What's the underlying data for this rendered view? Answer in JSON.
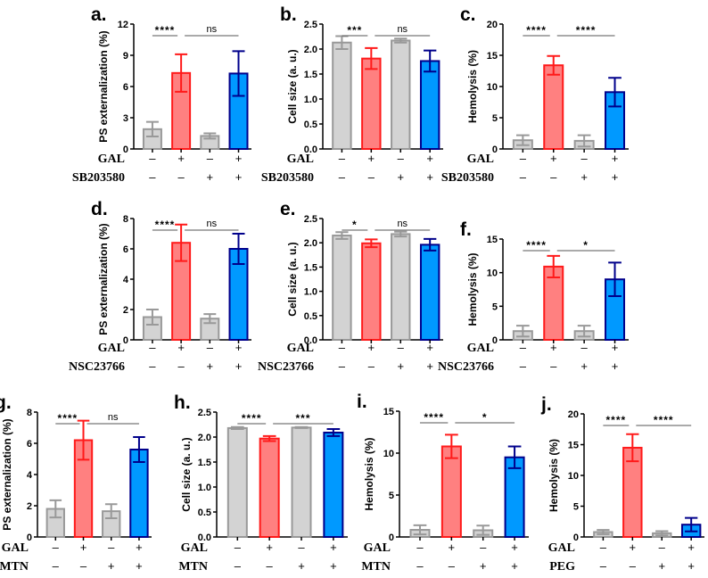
{
  "chart_data": [
    {
      "type": "bar",
      "letter": "a.",
      "ylabel": "PS externalization (%)",
      "ylim": [
        0,
        12
      ],
      "ticks": [
        "0",
        "3",
        "6",
        "9",
        "12"
      ],
      "values": [
        1.9,
        7.3,
        1.25,
        7.25
      ],
      "errors": [
        0.7,
        1.8,
        0.25,
        2.15
      ],
      "significance": [
        {
          "from": 0,
          "to": 1,
          "label": "****"
        },
        {
          "from": 1,
          "to": 3,
          "label": "ns"
        }
      ],
      "factors": [
        {
          "name": "GAL",
          "signs": [
            "–",
            "+",
            "–",
            "+"
          ]
        },
        {
          "name": "SB203580",
          "signs": [
            "–",
            "–",
            "+",
            "+"
          ]
        }
      ]
    },
    {
      "type": "bar",
      "letter": "b.",
      "ylabel": "Cell size (a. u.)",
      "ylim": [
        0,
        2.5
      ],
      "ticks": [
        "0.0",
        "0.5",
        "1.0",
        "1.5",
        "2.0",
        "2.5"
      ],
      "values": [
        2.13,
        1.81,
        2.17,
        1.76
      ],
      "errors": [
        0.13,
        0.21,
        0.04,
        0.21
      ],
      "significance": [
        {
          "from": 0,
          "to": 1,
          "label": "***"
        },
        {
          "from": 1,
          "to": 3,
          "label": "ns"
        }
      ],
      "factors": [
        {
          "name": "GAL",
          "signs": [
            "–",
            "+",
            "–",
            "+"
          ]
        },
        {
          "name": "SB203580",
          "signs": [
            "–",
            "–",
            "+",
            "+"
          ]
        }
      ]
    },
    {
      "type": "bar",
      "letter": "c.",
      "ylabel": "Hemolysis (%)",
      "ylim": [
        0,
        20
      ],
      "ticks": [
        "0",
        "5",
        "10",
        "15",
        "20"
      ],
      "values": [
        1.4,
        13.4,
        1.3,
        9.1
      ],
      "errors": [
        0.8,
        1.5,
        0.9,
        2.3
      ],
      "significance": [
        {
          "from": 0,
          "to": 1,
          "label": "****"
        },
        {
          "from": 1,
          "to": 3,
          "label": "****"
        }
      ],
      "factors": [
        {
          "name": "GAL",
          "signs": [
            "–",
            "+",
            "–",
            "+"
          ]
        },
        {
          "name": "SB203580",
          "signs": [
            "–",
            "–",
            "+",
            "+"
          ]
        }
      ]
    },
    {
      "type": "bar",
      "letter": "d.",
      "ylabel": "PS externalization (%)",
      "ylim": [
        0,
        8
      ],
      "ticks": [
        "0",
        "2",
        "4",
        "6",
        "8"
      ],
      "values": [
        1.5,
        6.4,
        1.4,
        6.0
      ],
      "errors": [
        0.5,
        1.2,
        0.3,
        1.0
      ],
      "significance": [
        {
          "from": 0,
          "to": 1,
          "label": "****"
        },
        {
          "from": 1,
          "to": 3,
          "label": "ns"
        }
      ],
      "factors": [
        {
          "name": "GAL",
          "signs": [
            "–",
            "+",
            "–",
            "+"
          ]
        },
        {
          "name": "NSC23766",
          "signs": [
            "–",
            "–",
            "+",
            "+"
          ]
        }
      ]
    },
    {
      "type": "bar",
      "letter": "e.",
      "ylabel": "Cell size (a. u.)",
      "ylim": [
        0,
        2.5
      ],
      "ticks": [
        "0.0",
        "0.5",
        "1.0",
        "1.5",
        "2.0",
        "2.5"
      ],
      "values": [
        2.15,
        1.99,
        2.18,
        1.96
      ],
      "errors": [
        0.07,
        0.08,
        0.05,
        0.12
      ],
      "significance": [
        {
          "from": 0,
          "to": 1,
          "label": "*"
        },
        {
          "from": 1,
          "to": 3,
          "label": "ns"
        }
      ],
      "factors": [
        {
          "name": "GAL",
          "signs": [
            "–",
            "+",
            "–",
            "+"
          ]
        },
        {
          "name": "NSC23766",
          "signs": [
            "–",
            "–",
            "+",
            "+"
          ]
        }
      ]
    },
    {
      "type": "bar",
      "letter": "f.",
      "ylabel": "Hemolysis (%)",
      "ylim": [
        0,
        15
      ],
      "ticks": [
        "0",
        "5",
        "10",
        "15"
      ],
      "values": [
        1.3,
        10.9,
        1.3,
        9.0
      ],
      "errors": [
        0.8,
        1.6,
        0.8,
        2.5
      ],
      "significance": [
        {
          "from": 0,
          "to": 1,
          "label": "****"
        },
        {
          "from": 1,
          "to": 3,
          "label": "*"
        }
      ],
      "factors": [
        {
          "name": "GAL",
          "signs": [
            "–",
            "+",
            "–",
            "+"
          ]
        },
        {
          "name": "NSC23766",
          "signs": [
            "–",
            "–",
            "+",
            "+"
          ]
        }
      ]
    },
    {
      "type": "bar",
      "letter": "g.",
      "ylabel": "PS externalization (%)",
      "ylim": [
        0,
        8
      ],
      "ticks": [
        "0",
        "2",
        "4",
        "6",
        "8"
      ],
      "values": [
        1.8,
        6.2,
        1.65,
        5.6
      ],
      "errors": [
        0.55,
        1.25,
        0.45,
        0.8
      ],
      "significance": [
        {
          "from": 0,
          "to": 1,
          "label": "****"
        },
        {
          "from": 1,
          "to": 3,
          "label": "ns"
        }
      ],
      "factors": [
        {
          "name": "GAL",
          "signs": [
            "–",
            "+",
            "–",
            "+"
          ]
        },
        {
          "name": "MTN",
          "signs": [
            "–",
            "–",
            "+",
            "+"
          ]
        }
      ]
    },
    {
      "type": "bar",
      "letter": "h.",
      "ylabel": "Cell size (a. u.)",
      "ylim": [
        0,
        2.5
      ],
      "ticks": [
        "0.0",
        "0.5",
        "1.0",
        "1.5",
        "2.0",
        "2.5"
      ],
      "values": [
        2.18,
        1.97,
        2.19,
        2.09
      ],
      "errors": [
        0.02,
        0.05,
        0.01,
        0.07
      ],
      "significance": [
        {
          "from": 0,
          "to": 1,
          "label": "****"
        },
        {
          "from": 1,
          "to": 3,
          "label": "***"
        }
      ],
      "factors": [
        {
          "name": "GAL",
          "signs": [
            "–",
            "+",
            "–",
            "+"
          ]
        },
        {
          "name": "MTN",
          "signs": [
            "–",
            "–",
            "+",
            "+"
          ]
        }
      ]
    },
    {
      "type": "bar",
      "letter": "i.",
      "ylabel": "Hemolysis (%)",
      "ylim": [
        0,
        15
      ],
      "ticks": [
        "0",
        "5",
        "10",
        "15"
      ],
      "values": [
        0.85,
        10.8,
        0.8,
        9.5
      ],
      "errors": [
        0.55,
        1.4,
        0.55,
        1.3
      ],
      "significance": [
        {
          "from": 0,
          "to": 1,
          "label": "****"
        },
        {
          "from": 1,
          "to": 3,
          "label": "*"
        }
      ],
      "factors": [
        {
          "name": "GAL",
          "signs": [
            "–",
            "+",
            "–",
            "+"
          ]
        },
        {
          "name": "MTN",
          "signs": [
            "–",
            "–",
            "+",
            "+"
          ]
        }
      ]
    },
    {
      "type": "bar",
      "letter": "j.",
      "ylabel": "Hemolysis (%)",
      "ylim": [
        0,
        20
      ],
      "ticks": [
        "0",
        "5",
        "10",
        "15",
        "20"
      ],
      "values": [
        0.8,
        14.5,
        0.6,
        2.0
      ],
      "errors": [
        0.35,
        2.2,
        0.35,
        1.1
      ],
      "significance": [
        {
          "from": 0,
          "to": 1,
          "label": "****"
        },
        {
          "from": 1,
          "to": 3,
          "label": "****"
        }
      ],
      "factors": [
        {
          "name": "GAL",
          "signs": [
            "–",
            "+",
            "–",
            "+"
          ]
        },
        {
          "name": "PEG",
          "signs": [
            "–",
            "–",
            "+",
            "+"
          ]
        }
      ]
    }
  ],
  "colors": {
    "gray_fill": "#d3d3d3",
    "gray_stroke": "#999999",
    "red_fill": "#ff8080",
    "red_stroke": "#ff1a1a",
    "blue_fill": "#0099ff",
    "blue_stroke": "#00008b"
  }
}
